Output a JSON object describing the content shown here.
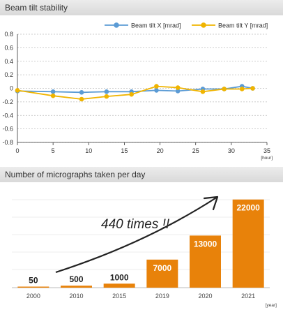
{
  "charts": {
    "line_title": "Beam tilt stability",
    "bar_title": "Number of micrographs taken per day"
  },
  "chart_data": [
    {
      "type": "line",
      "title": "Beam tilt stability",
      "xlabel": "[hour]",
      "ylabel": "",
      "xlim": [
        0,
        35
      ],
      "ylim": [
        -0.8,
        0.8
      ],
      "xticks": [
        "0",
        "5",
        "10",
        "15",
        "20",
        "25",
        "30",
        "35"
      ],
      "yticks": [
        "0.8",
        "0.6",
        "0.4",
        "0.2",
        "0",
        "-0.2",
        "-0.4",
        "-0.6",
        "-0.8"
      ],
      "grid": "horizontal dashed",
      "legend": "top-right",
      "series": [
        {
          "name": "Beam tilt X [mrad]",
          "color": "#5b9bd5",
          "points": [
            [
              0,
              -0.04
            ],
            [
              5,
              -0.05
            ],
            [
              9,
              -0.06
            ],
            [
              12.5,
              -0.05
            ],
            [
              16,
              -0.05
            ],
            [
              19.5,
              -0.03
            ],
            [
              22.5,
              -0.04
            ],
            [
              26,
              -0.01
            ],
            [
              29,
              -0.01
            ],
            [
              31.5,
              0.03
            ],
            [
              33,
              0.0
            ]
          ]
        },
        {
          "name": "Beam tilt Y [mrad]",
          "color": "#f0b400",
          "points": [
            [
              0,
              -0.03
            ],
            [
              5,
              -0.11
            ],
            [
              9,
              -0.16
            ],
            [
              12.5,
              -0.12
            ],
            [
              16,
              -0.09
            ],
            [
              19.5,
              0.03
            ],
            [
              22.5,
              0.01
            ],
            [
              26,
              -0.05
            ],
            [
              29,
              -0.01
            ],
            [
              31.5,
              -0.01
            ],
            [
              33,
              0.0
            ]
          ]
        }
      ]
    },
    {
      "type": "bar",
      "title": "Number of micrographs taken per day",
      "xlabel": "[year]",
      "ylabel": "",
      "categories": [
        "2000",
        "2010",
        "2015",
        "2019",
        "2020",
        "2021"
      ],
      "values": [
        50,
        500,
        1000,
        7000,
        13000,
        22000
      ],
      "value_labels": [
        "50",
        "500",
        "1000",
        "7000",
        "13000",
        "22000"
      ],
      "ylim": [
        0,
        23000
      ],
      "color": "#e8820a",
      "annotation": "440 times !!"
    }
  ]
}
